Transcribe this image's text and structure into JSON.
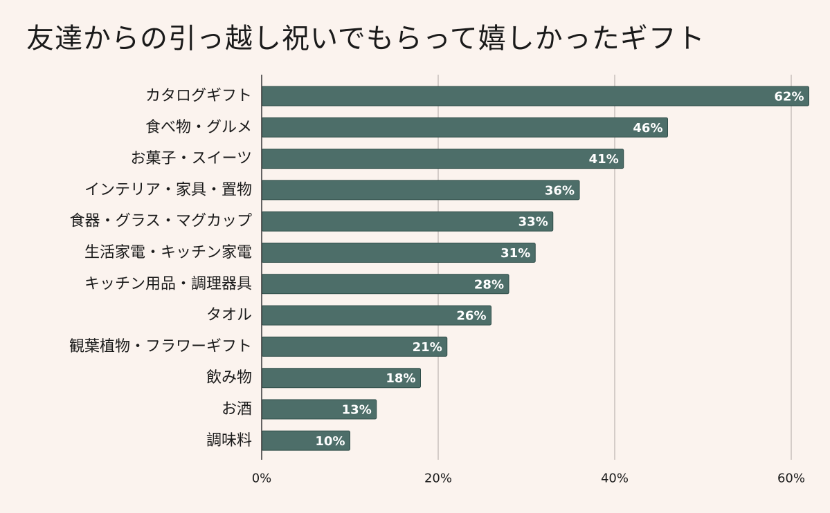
{
  "title": "友達からの引っ越し祝いでもらって嬉しかったギフト",
  "colors": {
    "background": "#fbf3ee",
    "bar": "#4d6e69",
    "bar_stroke": "#2f4d49",
    "grid": "#c8c0bb",
    "axis": "#333333",
    "value_label": "#ffffff"
  },
  "chart_data": {
    "type": "bar",
    "orientation": "horizontal",
    "title": "友達からの引っ越し祝いでもらって嬉しかったギフト",
    "categories": [
      "カタログギフト",
      "食べ物・グルメ",
      "お菓子・スイーツ",
      "インテリア・家具・置物",
      "食器・グラス・マグカップ",
      "生活家電・キッチン家電",
      "キッチン用品・調理器具",
      "タオル",
      "観葉植物・フラワーギフト",
      "飲み物",
      "お酒",
      "調味料"
    ],
    "values": [
      62,
      46,
      41,
      36,
      33,
      31,
      28,
      26,
      21,
      18,
      13,
      10
    ],
    "value_labels": [
      "62%",
      "46%",
      "41%",
      "36%",
      "33%",
      "31%",
      "28%",
      "26%",
      "21%",
      "18%",
      "13%",
      "10%"
    ],
    "xlim": [
      0,
      60
    ],
    "xticks": [
      0,
      20,
      40,
      60
    ],
    "xtick_labels": [
      "0%",
      "20%",
      "40%",
      "60%"
    ],
    "xlabel": "",
    "ylabel": "",
    "grid": "vertical",
    "legend": "none"
  }
}
